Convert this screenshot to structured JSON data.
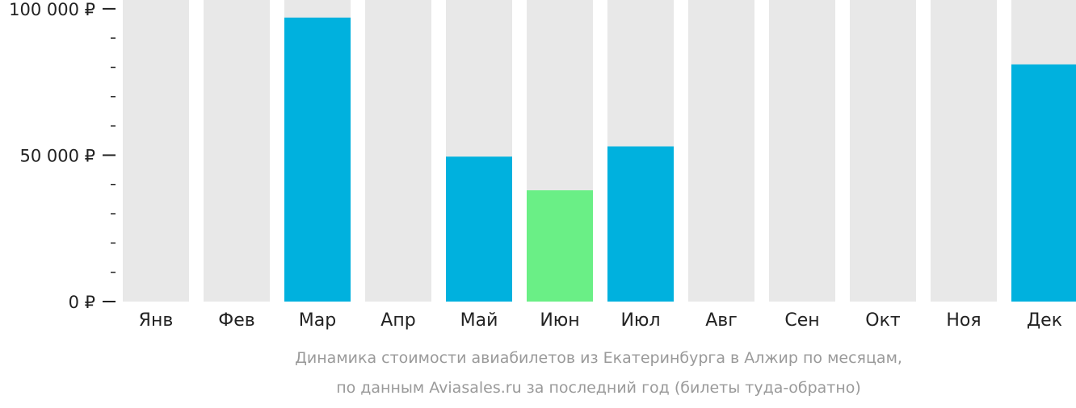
{
  "chart_data": {
    "type": "bar",
    "categories": [
      "Янв",
      "Фев",
      "Мар",
      "Апр",
      "Май",
      "Июн",
      "Июл",
      "Авг",
      "Сен",
      "Окт",
      "Ноя",
      "Дек"
    ],
    "values": [
      null,
      null,
      97000,
      null,
      49500,
      38000,
      53000,
      null,
      null,
      null,
      null,
      81000
    ],
    "highlight_index": 5,
    "ylim": [
      0,
      103000
    ],
    "y_ticks": [
      {
        "value": 0,
        "label": "0 ₽"
      },
      {
        "value": 50000,
        "label": "50 000 ₽"
      },
      {
        "value": 100000,
        "label": "100 000 ₽"
      }
    ],
    "minor_tick_step": 10000,
    "xlabel": "",
    "ylabel": "",
    "caption_lines": [
      "Динамика стоимости авиабилетов из Екатеринбурга в Алжир по месяцам,",
      "по данным Aviasales.ru за последний год (билеты туда-обратно)"
    ],
    "colors": {
      "bar": "#00b1de",
      "highlight": "#6aef86",
      "background_bar": "#e8e8e8",
      "tick": "#222222",
      "caption": "#9a9a9a"
    }
  }
}
